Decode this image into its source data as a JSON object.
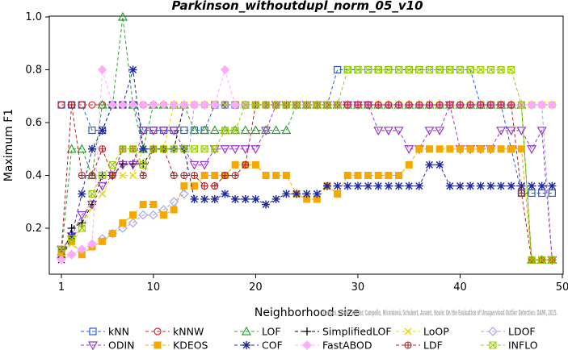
{
  "chart_data": {
    "type": "line",
    "title": "Parkinson_withoutdupl_norm_05_v10",
    "xlabel": "Neighborhood size",
    "ylabel": "Maximum F1",
    "xlim": [
      -1,
      50
    ],
    "ylim": [
      0.05,
      1.0
    ],
    "xticks": [
      1,
      10,
      20,
      30,
      40,
      50
    ],
    "yticks": [
      0.2,
      0.4,
      0.6,
      0.8,
      1.0
    ],
    "grid": false,
    "legend_position": "bottom",
    "watermark": "Campos, Zimek, Sander, Campello, Micenková, Schubert, Assent, Houle: On the Evaluation of Unsupervised Outlier Detection. DAMI, 2015.",
    "series": [
      {
        "name": "kNN",
        "color": "#2a5bd7",
        "marker": "square",
        "values": [
          0.667,
          0.667,
          0.667,
          0.571,
          0.571,
          0.667,
          0.667,
          0.667,
          0.571,
          0.571,
          0.571,
          0.571,
          0.571,
          0.571,
          0.571,
          0.667,
          0.667,
          0.667,
          0.667,
          0.667,
          0.667,
          0.667,
          0.667,
          0.667,
          0.667,
          0.667,
          0.667,
          0.8,
          0.8,
          0.8,
          0.8,
          0.8,
          0.8,
          0.8,
          0.8,
          0.8,
          0.8,
          0.8,
          0.8,
          0.8,
          0.8,
          0.667,
          0.667,
          0.667,
          0.5,
          0.333,
          0.333,
          0.333,
          0.333
        ]
      },
      {
        "name": "kNNW",
        "color": "#d62728",
        "marker": "circle",
        "values": [
          0.667,
          0.667,
          0.667,
          0.667,
          0.667,
          0.667,
          0.667,
          0.667,
          0.667,
          0.667,
          0.667,
          0.667,
          0.667,
          0.667,
          0.667,
          0.667,
          0.667,
          0.667,
          0.667,
          0.667,
          0.667,
          0.667,
          0.667,
          0.667,
          0.667,
          0.667,
          0.667,
          0.667,
          0.667,
          0.667,
          0.667,
          0.667,
          0.667,
          0.667,
          0.667,
          0.667,
          0.667,
          0.667,
          0.667,
          0.667,
          0.667,
          0.667,
          0.667,
          0.667,
          0.667,
          0.667,
          0.667,
          0.667,
          0.667
        ]
      },
      {
        "name": "LOF",
        "color": "#2ca02c",
        "marker": "triangle-up",
        "values": [
          0.1,
          0.5,
          0.5,
          0.4,
          0.667,
          0.667,
          1.0,
          0.667,
          0.5,
          0.667,
          0.667,
          0.667,
          0.667,
          0.571,
          0.571,
          0.571,
          0.571,
          0.571,
          0.571,
          0.571,
          0.571,
          0.571,
          0.571,
          0.667,
          0.667,
          0.667,
          0.667,
          0.667,
          0.667,
          0.667,
          0.667,
          0.667,
          0.667,
          0.667,
          0.667,
          0.667,
          0.667,
          0.667,
          0.667,
          0.667,
          0.667,
          0.667,
          0.667,
          0.667,
          0.667,
          0.667,
          0.08,
          0.08,
          0.08
        ]
      },
      {
        "name": "SimplifiedLOF",
        "color": "#000000",
        "marker": "plus",
        "values": [
          0.08,
          0.2,
          0.22,
          0.29,
          0.4,
          0.4,
          0.444,
          0.444,
          0.444,
          0.5,
          0.5,
          0.5,
          0.667,
          0.667,
          0.667,
          0.667,
          0.667,
          0.667,
          0.667,
          0.667,
          0.667,
          0.667,
          0.667,
          0.667,
          0.667,
          0.667,
          0.667,
          0.667,
          0.667,
          0.667,
          0.667,
          0.667,
          0.667,
          0.667,
          0.667,
          0.667,
          0.667,
          0.667,
          0.667,
          0.667,
          0.667,
          0.667,
          0.667,
          0.667,
          0.667,
          0.667,
          0.667,
          0.667,
          0.667
        ]
      },
      {
        "name": "LoOP",
        "color": "#e8d800",
        "marker": "x",
        "values": [
          0.1,
          0.14,
          0.2,
          0.28,
          0.33,
          0.4,
          0.4,
          0.4,
          0.5,
          0.5,
          0.5,
          0.667,
          0.667,
          0.667,
          0.667,
          0.667,
          0.667,
          0.667,
          0.667,
          0.667,
          0.667,
          0.667,
          0.667,
          0.667,
          0.667,
          0.667,
          0.667,
          0.667,
          0.667,
          0.667,
          0.667,
          0.667,
          0.667,
          0.667,
          0.667,
          0.667,
          0.667,
          0.667,
          0.667,
          0.667,
          0.667,
          0.667,
          0.667,
          0.667,
          0.667,
          0.667,
          0.667,
          0.667,
          0.667
        ]
      },
      {
        "name": "LDOF",
        "color": "#a6a6e8",
        "marker": "diamond",
        "values": [
          0.1,
          0.1,
          0.12,
          0.14,
          0.16,
          0.18,
          0.2,
          0.22,
          0.25,
          0.25,
          0.27,
          0.3,
          0.33,
          0.667,
          0.667,
          0.667,
          0.667,
          0.667,
          0.667,
          0.667,
          0.667,
          0.667,
          0.667,
          0.667,
          0.667,
          0.667,
          0.667,
          0.667,
          0.667,
          0.667,
          0.667,
          0.667,
          0.667,
          0.667,
          0.667,
          0.667,
          0.667,
          0.667,
          0.667,
          0.667,
          0.667,
          0.667,
          0.667,
          0.667,
          0.667,
          0.667,
          0.667,
          0.667,
          0.08
        ]
      },
      {
        "name": "ODIN",
        "color": "#9933cc",
        "marker": "triangle-down",
        "values": [
          0.12,
          0.17,
          0.25,
          0.29,
          0.36,
          0.4,
          0.44,
          0.44,
          0.57,
          0.57,
          0.57,
          0.57,
          0.5,
          0.44,
          0.44,
          0.5,
          0.5,
          0.5,
          0.5,
          0.5,
          0.57,
          0.667,
          0.667,
          0.667,
          0.667,
          0.667,
          0.667,
          0.667,
          0.667,
          0.667,
          0.667,
          0.57,
          0.57,
          0.57,
          0.5,
          0.5,
          0.57,
          0.57,
          0.667,
          0.5,
          0.5,
          0.5,
          0.5,
          0.57,
          0.57,
          0.57,
          0.5,
          0.57,
          0.08
        ]
      },
      {
        "name": "KDEOS",
        "color": "#f5a800",
        "marker": "square-filled",
        "values": [
          0.1,
          0.15,
          0.1,
          0.13,
          0.15,
          0.18,
          0.22,
          0.25,
          0.29,
          0.29,
          0.25,
          0.27,
          0.36,
          0.36,
          0.4,
          0.4,
          0.4,
          0.44,
          0.44,
          0.44,
          0.4,
          0.4,
          0.4,
          0.33,
          0.31,
          0.31,
          0.36,
          0.33,
          0.4,
          0.4,
          0.4,
          0.4,
          0.4,
          0.4,
          0.44,
          0.5,
          0.5,
          0.5,
          0.5,
          0.5,
          0.5,
          0.5,
          0.5,
          0.5,
          0.5,
          0.5,
          0.08,
          0.08,
          0.08
        ]
      },
      {
        "name": "COF",
        "color": "#1f2a99",
        "marker": "asterisk",
        "values": [
          0.08,
          0.17,
          0.33,
          0.5,
          0.57,
          0.667,
          0.667,
          0.8,
          0.5,
          0.5,
          0.5,
          0.5,
          0.5,
          0.31,
          0.31,
          0.31,
          0.33,
          0.31,
          0.31,
          0.31,
          0.29,
          0.31,
          0.33,
          0.33,
          0.33,
          0.33,
          0.36,
          0.36,
          0.36,
          0.36,
          0.36,
          0.36,
          0.36,
          0.36,
          0.36,
          0.36,
          0.44,
          0.44,
          0.36,
          0.36,
          0.36,
          0.36,
          0.36,
          0.36,
          0.36,
          0.36,
          0.36,
          0.36,
          0.36
        ]
      },
      {
        "name": "FastABOD",
        "color": "#ffaaff",
        "marker": "diamond-filled",
        "values": [
          0.08,
          0.1,
          0.12,
          0.14,
          0.8,
          0.667,
          0.667,
          0.667,
          0.667,
          0.667,
          0.667,
          0.667,
          0.667,
          0.667,
          0.667,
          0.667,
          0.8,
          0.667,
          0.667,
          0.667,
          0.667,
          0.667,
          0.667,
          0.667,
          0.667,
          0.667,
          0.667,
          0.667,
          0.667,
          0.667,
          0.667,
          0.667,
          0.667,
          0.667,
          0.667,
          0.667,
          0.667,
          0.667,
          0.667,
          0.667,
          0.667,
          0.667,
          0.667,
          0.667,
          0.667,
          0.667,
          0.667,
          0.667,
          0.667
        ]
      },
      {
        "name": "LDF",
        "color": "#b22222",
        "marker": "circle-plus",
        "values": [
          0.12,
          0.667,
          0.4,
          0.4,
          0.5,
          0.4,
          0.5,
          0.5,
          0.4,
          0.5,
          0.5,
          0.4,
          0.4,
          0.4,
          0.36,
          0.36,
          0.4,
          0.4,
          0.44,
          0.667,
          0.667,
          0.667,
          0.667,
          0.667,
          0.667,
          0.667,
          0.667,
          0.667,
          0.667,
          0.667,
          0.667,
          0.667,
          0.667,
          0.667,
          0.667,
          0.667,
          0.667,
          0.667,
          0.667,
          0.667,
          0.667,
          0.667,
          0.667,
          0.667,
          0.667,
          0.333,
          0.08,
          0.08,
          0.08
        ]
      },
      {
        "name": "INFLO",
        "color": "#99cc00",
        "marker": "square-x",
        "values": [
          0.12,
          0.16,
          0.2,
          0.33,
          0.4,
          0.44,
          0.5,
          0.5,
          0.44,
          0.5,
          0.5,
          0.5,
          0.5,
          0.5,
          0.5,
          0.5,
          0.57,
          0.57,
          0.667,
          0.667,
          0.667,
          0.667,
          0.667,
          0.667,
          0.667,
          0.667,
          0.667,
          0.667,
          0.8,
          0.8,
          0.8,
          0.8,
          0.8,
          0.8,
          0.8,
          0.8,
          0.8,
          0.8,
          0.8,
          0.8,
          0.8,
          0.8,
          0.8,
          0.8,
          0.8,
          0.667,
          0.08,
          0.08,
          0.08
        ]
      }
    ]
  }
}
